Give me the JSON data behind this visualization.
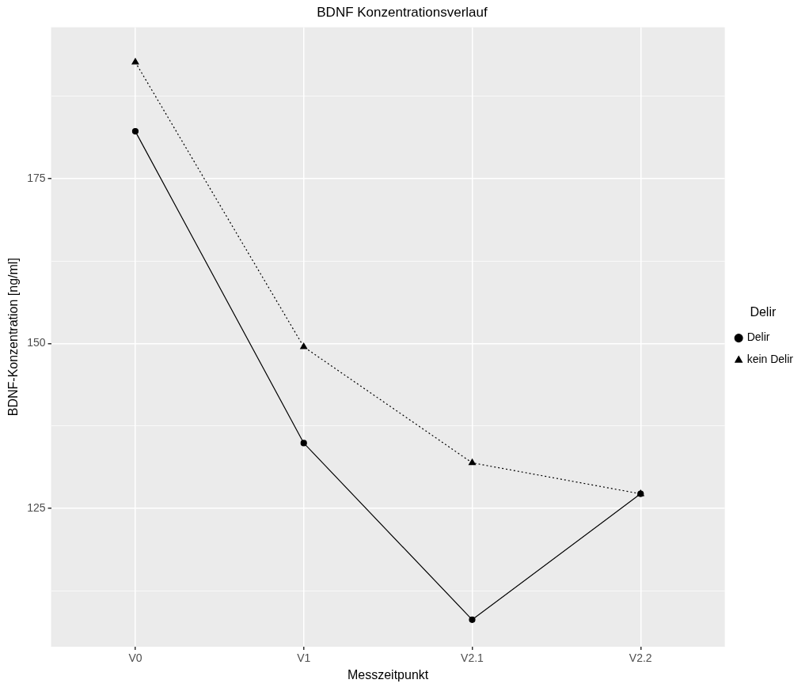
{
  "chart_data": {
    "type": "line",
    "title": "BDNF Konzentrationsverlauf",
    "xlabel": "Messzeitpunkt",
    "ylabel": "BDNF-Konzentration [ng/ml]",
    "legend_title": "Delir",
    "legend": "right",
    "grid": true,
    "categories": [
      "V0",
      "V1",
      "V2.1",
      "V2.2"
    ],
    "ylim": [
      104,
      198
    ],
    "yticks": [
      {
        "value": 112.5,
        "label": null
      },
      125,
      {
        "value": 137.5,
        "label": null
      },
      150,
      {
        "value": 162.5,
        "label": null
      },
      175,
      {
        "value": 187.5,
        "label": null
      }
    ],
    "series": [
      {
        "name": "Delir",
        "color": "#000000",
        "marker": "circle",
        "line_style": "solid",
        "values": [
          182.2,
          134.9,
          108.1,
          127.2
        ]
      },
      {
        "name": "kein Delir",
        "color": "#000000",
        "marker": "triangle",
        "line_style": "dotted",
        "values": [
          192.7,
          149.5,
          131.9,
          127.2
        ]
      }
    ]
  }
}
